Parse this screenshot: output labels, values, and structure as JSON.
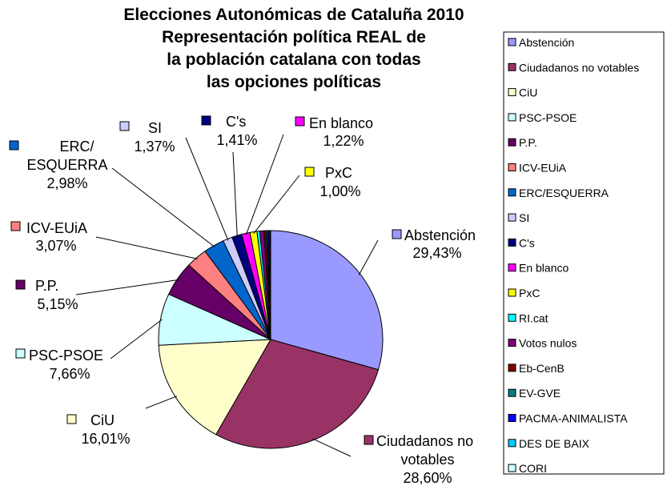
{
  "chart_data": {
    "type": "pie",
    "title": [
      "Elecciones Autonómicas de Cataluña 2010",
      "Representación política REAL de",
      "la población catalana con todas",
      "las opciones políticas"
    ],
    "legend_position": "right",
    "slices": [
      {
        "name": "Abstención",
        "value": 29.43,
        "label": "29,43%",
        "color": "#9999ff",
        "outer_label": [
          "Abstención",
          "29,43%"
        ]
      },
      {
        "name": "Ciudadanos no votables",
        "value": 28.6,
        "label": "28,60%",
        "color": "#993366",
        "outer_label": [
          "Ciudadanos no",
          "votables",
          "28,60%"
        ]
      },
      {
        "name": "CiU",
        "value": 16.01,
        "label": "16,01%",
        "color": "#ffffcc",
        "outer_label": [
          "CiU",
          "16,01%"
        ]
      },
      {
        "name": "PSC-PSOE",
        "value": 7.66,
        "label": "7,66%",
        "color": "#ccffff",
        "outer_label": [
          "PSC-PSOE",
          "7,66%"
        ]
      },
      {
        "name": "P.P.",
        "value": 5.15,
        "label": "5,15%",
        "color": "#660066",
        "outer_label": [
          "P.P.",
          "5,15%"
        ]
      },
      {
        "name": "ICV-EUiA",
        "value": 3.07,
        "label": "3,07%",
        "color": "#ff8080",
        "outer_label": [
          "ICV-EUiA",
          "3,07%"
        ]
      },
      {
        "name": "ERC/ESQUERRA",
        "value": 2.98,
        "label": "2,98%",
        "color": "#0066cc",
        "outer_label": [
          "ERC/",
          "ESQUERRA",
          "2,98%"
        ]
      },
      {
        "name": "SI",
        "value": 1.37,
        "label": "1,37%",
        "color": "#ccccff",
        "outer_label": [
          "SI",
          "1,37%"
        ]
      },
      {
        "name": "C's",
        "value": 1.41,
        "label": "1,41%",
        "color": "#000080",
        "outer_label": [
          "C's",
          "1,41%"
        ]
      },
      {
        "name": "En blanco",
        "value": 1.22,
        "label": "1,22%",
        "color": "#ff00ff",
        "outer_label": [
          "En blanco",
          "1,22%"
        ]
      },
      {
        "name": "PxC",
        "value": 1.0,
        "label": "1,00%",
        "color": "#ffff00",
        "outer_label": [
          "PxC",
          "1,00%"
        ]
      },
      {
        "name": "RI.cat",
        "value": 0.4,
        "label": "",
        "color": "#00ffff",
        "outer_label": []
      },
      {
        "name": "Votos nulos",
        "value": 0.6,
        "label": "",
        "color": "#800080",
        "outer_label": []
      },
      {
        "name": "Eb-CenB",
        "value": 0.3,
        "label": "",
        "color": "#800000",
        "outer_label": []
      },
      {
        "name": "EV-GVE",
        "value": 0.2,
        "label": "",
        "color": "#008080",
        "outer_label": []
      },
      {
        "name": "PACMA-ANIMALISTA",
        "value": 0.2,
        "label": "",
        "color": "#0000ff",
        "outer_label": []
      },
      {
        "name": "DES DE BAIX",
        "value": 0.15,
        "label": "",
        "color": "#00ccff",
        "outer_label": []
      },
      {
        "name": "CORI",
        "value": 0.1,
        "label": "",
        "color": "#ccffff",
        "outer_label": []
      }
    ]
  }
}
